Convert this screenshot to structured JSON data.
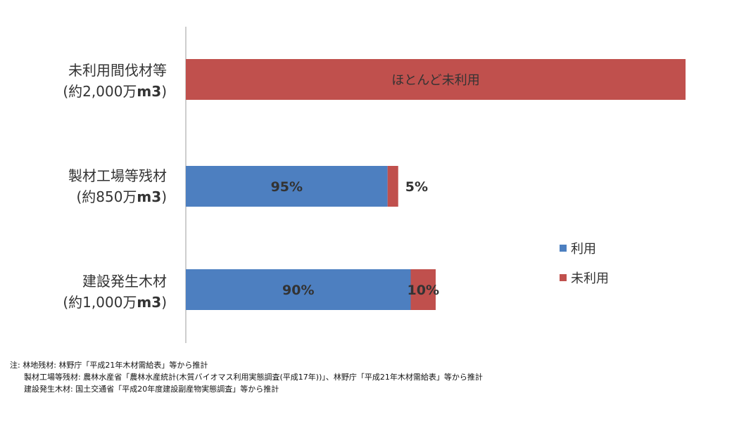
{
  "chart_data": {
    "type": "bar",
    "orientation": "horizontal",
    "stacked": true,
    "categories": [
      {
        "name": "未利用間伐材等",
        "sub": "(約2,000万",
        "unit": "m3",
        "close": ")"
      },
      {
        "name": "製材工場等残材",
        "sub": "(約850万",
        "unit": "m3",
        "close": ")"
      },
      {
        "name": "建設発生木材",
        "sub": "(約1,000万",
        "unit": "m3",
        "close": ")"
      }
    ],
    "volumes": [
      2000,
      850,
      1000
    ],
    "volume_unit": "万m3",
    "series": [
      {
        "name": "利用",
        "color": "#4d7fc0",
        "values": [
          0,
          95,
          90
        ],
        "labels": [
          "",
          "95%",
          "90%"
        ]
      },
      {
        "name": "未利用",
        "color": "#c0504d",
        "values": [
          100,
          5,
          10
        ],
        "labels": [
          "ほとんど未利用",
          "5%",
          "10%"
        ]
      }
    ],
    "legend_position": "right",
    "grid": false
  },
  "notes": [
    "注: 林地残材: 林野庁「平成21年木材需給表」等から推計",
    "製材工場等残材: 農林水産省「農林水産統計(木質バイオマス利用実態調査(平成17年))」、林野庁「平成21年木材需給表」等から推計",
    "建設発生木材: 国土交通省「平成20年度建設副産物実態調査」等から推計"
  ]
}
